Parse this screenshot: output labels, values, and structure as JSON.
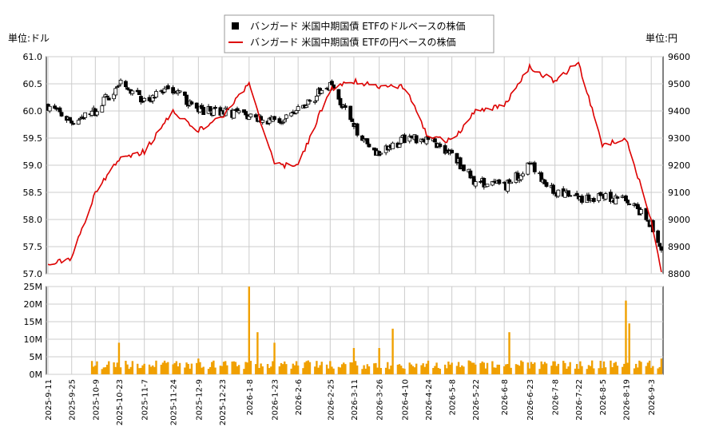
{
  "legend": {
    "items": [
      {
        "label": "バンガード 米国中期国債 ETFのドルベースの株価",
        "color": "#000000",
        "marker": "square"
      },
      {
        "label": "バンガード 米国中期国債 ETFの円ベースの株価",
        "color": "#dd0000",
        "marker": "line"
      }
    ]
  },
  "left_unit": "単位:ドル",
  "right_unit": "単位:円",
  "chart_data": [
    {
      "type": "candlestick+line",
      "y_left": {
        "lim": [
          57.0,
          61.0
        ],
        "ticks": [
          "57.0",
          "57.5",
          "58.0",
          "58.5",
          "59.0",
          "59.5",
          "60.0",
          "60.5",
          "61.0"
        ]
      },
      "y_right": {
        "lim": [
          8800,
          9600
        ],
        "ticks": [
          "8800",
          "8900",
          "9000",
          "9100",
          "9200",
          "9300",
          "9400",
          "9500",
          "9600"
        ]
      },
      "x_ticks": [
        "2025-9-11",
        "2025-9-25",
        "2025-10-9",
        "2025-10-23",
        "2025-11-7",
        "2025-11-24",
        "2025-12-9",
        "2025-12-23",
        "2026-1-8",
        "2026-1-23",
        "2026-2-6",
        "2026-2-25",
        "2026-3-11",
        "2026-3-26",
        "2026-4-10",
        "2026-4-24",
        "2026-5-8",
        "2026-5-22",
        "2026-6-8",
        "2026-6-23",
        "2026-7-8",
        "2026-7-22",
        "2026-8-5",
        "2026-8-19",
        "2026-9-3"
      ],
      "grid": true,
      "dollar_close": [
        {
          "x": "2025-9-11",
          "y": 60.1
        },
        {
          "x": "2025-9-25",
          "y": 59.8
        },
        {
          "x": "2025-10-9",
          "y": 60.0
        },
        {
          "x": "2025-10-23",
          "y": 60.5
        },
        {
          "x": "2025-11-7",
          "y": 60.2
        },
        {
          "x": "2025-11-24",
          "y": 60.4
        },
        {
          "x": "2025-12-9",
          "y": 60.0
        },
        {
          "x": "2025-12-23",
          "y": 60.0
        },
        {
          "x": "2026-1-8",
          "y": 59.9
        },
        {
          "x": "2026-1-23",
          "y": 59.8
        },
        {
          "x": "2026-2-6",
          "y": 60.0
        },
        {
          "x": "2026-2-25",
          "y": 60.5
        },
        {
          "x": "2026-3-11",
          "y": 59.7
        },
        {
          "x": "2026-3-26",
          "y": 59.2
        },
        {
          "x": "2026-4-10",
          "y": 59.5
        },
        {
          "x": "2026-4-24",
          "y": 59.5
        },
        {
          "x": "2026-5-8",
          "y": 59.2
        },
        {
          "x": "2026-5-22",
          "y": 58.7
        },
        {
          "x": "2026-6-8",
          "y": 58.6
        },
        {
          "x": "2026-6-23",
          "y": 59.0
        },
        {
          "x": "2026-7-8",
          "y": 58.5
        },
        {
          "x": "2026-7-22",
          "y": 58.4
        },
        {
          "x": "2026-8-5",
          "y": 58.4
        },
        {
          "x": "2026-8-19",
          "y": 58.4
        },
        {
          "x": "2026-9-3",
          "y": 57.9
        },
        {
          "x": "2026-9-9",
          "y": 57.4
        }
      ],
      "yen_close": [
        {
          "x": "2025-9-11",
          "y": 8830
        },
        {
          "x": "2025-9-25",
          "y": 8860
        },
        {
          "x": "2025-10-9",
          "y": 9100
        },
        {
          "x": "2025-10-23",
          "y": 9220
        },
        {
          "x": "2025-11-7",
          "y": 9250
        },
        {
          "x": "2025-11-24",
          "y": 9400
        },
        {
          "x": "2025-12-9",
          "y": 9330
        },
        {
          "x": "2025-12-23",
          "y": 9380
        },
        {
          "x": "2026-1-8",
          "y": 9500
        },
        {
          "x": "2026-1-23",
          "y": 9200
        },
        {
          "x": "2026-2-6",
          "y": 9200
        },
        {
          "x": "2026-2-25",
          "y": 9480
        },
        {
          "x": "2026-3-11",
          "y": 9510
        },
        {
          "x": "2026-3-26",
          "y": 9490
        },
        {
          "x": "2026-4-10",
          "y": 9490
        },
        {
          "x": "2026-4-24",
          "y": 9300
        },
        {
          "x": "2026-5-8",
          "y": 9290
        },
        {
          "x": "2026-5-22",
          "y": 9400
        },
        {
          "x": "2026-6-8",
          "y": 9420
        },
        {
          "x": "2026-6-23",
          "y": 9560
        },
        {
          "x": "2026-7-8",
          "y": 9510
        },
        {
          "x": "2026-7-22",
          "y": 9580
        },
        {
          "x": "2026-8-5",
          "y": 9270
        },
        {
          "x": "2026-8-19",
          "y": 9300
        },
        {
          "x": "2026-9-3",
          "y": 9000
        },
        {
          "x": "2026-9-9",
          "y": 8800
        }
      ]
    },
    {
      "type": "bar",
      "y_lim": [
        0,
        25000000
      ],
      "y_ticks": [
        "0M",
        "5M",
        "10M",
        "15M",
        "20M",
        "25M"
      ],
      "color": "#f0a000",
      "volume_notes": [
        {
          "x": "2025-10-9",
          "y": 2500000
        },
        {
          "x": "2025-10-23",
          "y": 9000000
        },
        {
          "x": "2025-11-7",
          "y": 3000000
        },
        {
          "x": "2025-12-9",
          "y": 4500000
        },
        {
          "x": "2026-1-8",
          "y": 25000000
        },
        {
          "x": "2026-1-13",
          "y": 12000000
        },
        {
          "x": "2026-1-23",
          "y": 9000000
        },
        {
          "x": "2026-3-11",
          "y": 7500000
        },
        {
          "x": "2026-3-26",
          "y": 7500000
        },
        {
          "x": "2026-4-3",
          "y": 13000000
        },
        {
          "x": "2026-6-11",
          "y": 12000000
        },
        {
          "x": "2026-8-19",
          "y": 21000000
        },
        {
          "x": "2026-8-21",
          "y": 14500000
        },
        {
          "x": "2026-9-9",
          "y": 4500000
        }
      ]
    }
  ]
}
